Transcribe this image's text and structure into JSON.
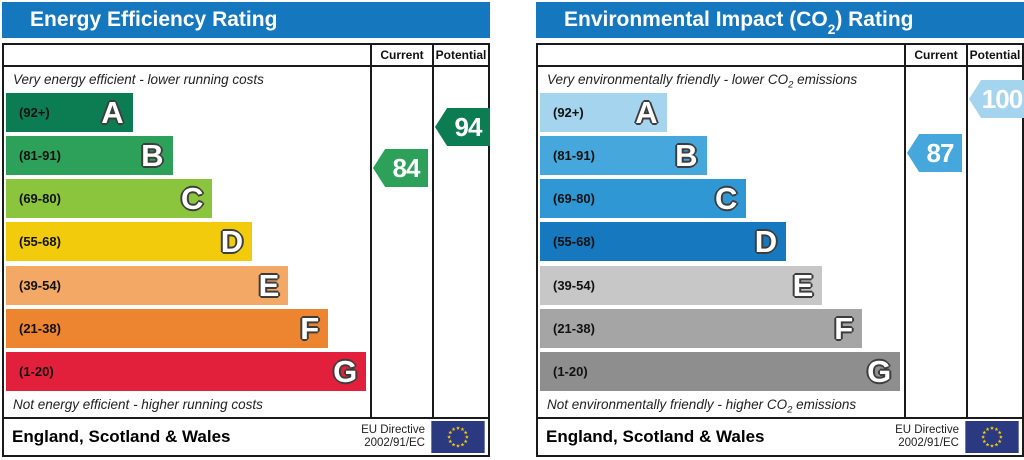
{
  "colors": {
    "header_blue": "#1577bd",
    "flag_bg": "#2b3a80",
    "flag_star": "#ffcc00"
  },
  "charts": [
    {
      "title_parts": {
        "pre": "Energy Efficiency Rating",
        "sub": "",
        "post": ""
      },
      "columns": {
        "current": "Current",
        "potential": "Potential"
      },
      "top_note_parts": {
        "pre": "Very energy efficient - lower running costs",
        "sub": "",
        "post": ""
      },
      "bottom_note_parts": {
        "pre": "Not energy efficient - higher running costs",
        "sub": "",
        "post": ""
      },
      "bands": [
        {
          "range": "(92+)",
          "letter": "A",
          "color": "#0c7c52",
          "width_pct": 35
        },
        {
          "range": "(81-91)",
          "letter": "B",
          "color": "#2da05a",
          "width_pct": 46
        },
        {
          "range": "(69-80)",
          "letter": "C",
          "color": "#8bc53e",
          "width_pct": 57
        },
        {
          "range": "(55-68)",
          "letter": "D",
          "color": "#f2cb0c",
          "width_pct": 68
        },
        {
          "range": "(39-54)",
          "letter": "E",
          "color": "#f3a865",
          "width_pct": 78
        },
        {
          "range": "(21-38)",
          "letter": "F",
          "color": "#ed8430",
          "width_pct": 89
        },
        {
          "range": "(1-20)",
          "letter": "G",
          "color": "#e3203c",
          "width_pct": 99.5
        }
      ],
      "current": {
        "value": "84",
        "color": "#2da05a"
      },
      "potential": {
        "value": "94",
        "color": "#0c7c52"
      },
      "footer": {
        "region": "England, Scotland & Wales",
        "directive_line1": "EU Directive",
        "directive_line2": "2002/91/EC"
      }
    },
    {
      "title_parts": {
        "pre": "Environmental Impact (CO",
        "sub": "2",
        "post": ") Rating"
      },
      "columns": {
        "current": "Current",
        "potential": "Potential"
      },
      "top_note_parts": {
        "pre": "Very environmentally friendly - lower CO",
        "sub": "2",
        "post": " emissions"
      },
      "bottom_note_parts": {
        "pre": "Not environmentally friendly - higher CO",
        "sub": "2",
        "post": " emissions"
      },
      "bands": [
        {
          "range": "(92+)",
          "letter": "A",
          "color": "#a5d5ee",
          "width_pct": 35
        },
        {
          "range": "(81-91)",
          "letter": "B",
          "color": "#46a7dc",
          "width_pct": 46
        },
        {
          "range": "(69-80)",
          "letter": "C",
          "color": "#2f97d4",
          "width_pct": 57
        },
        {
          "range": "(55-68)",
          "letter": "D",
          "color": "#1678be",
          "width_pct": 68
        },
        {
          "range": "(39-54)",
          "letter": "E",
          "color": "#c7c7c7",
          "width_pct": 78
        },
        {
          "range": "(21-38)",
          "letter": "F",
          "color": "#a5a5a5",
          "width_pct": 89
        },
        {
          "range": "(1-20)",
          "letter": "G",
          "color": "#8e8e8e",
          "width_pct": 99.5
        }
      ],
      "current": {
        "value": "87",
        "color": "#46a7dc"
      },
      "potential": {
        "value": "100",
        "color": "#a5d5ee"
      },
      "footer": {
        "region": "England, Scotland & Wales",
        "directive_line1": "EU Directive",
        "directive_line2": "2002/91/EC"
      }
    }
  ],
  "chart_data": [
    {
      "type": "bar",
      "title": "Energy Efficiency Rating",
      "subtitle_top": "Very energy efficient - lower running costs",
      "subtitle_bottom": "Not energy efficient - higher running costs",
      "categories": [
        "A (92+)",
        "B (81-91)",
        "C (69-80)",
        "D (55-68)",
        "E (39-54)",
        "F (21-38)",
        "G (1-20)"
      ],
      "band_bar_lengths_pct": [
        35,
        46,
        57,
        68,
        78,
        89,
        99.5
      ],
      "series": [
        {
          "name": "Current",
          "values": [
            84
          ],
          "band": "B"
        },
        {
          "name": "Potential",
          "values": [
            94
          ],
          "band": "A"
        }
      ],
      "scale_range": [
        1,
        100
      ],
      "legend_position": "top-right columns",
      "region": "England, Scotland & Wales",
      "directive": "EU Directive 2002/91/EC"
    },
    {
      "type": "bar",
      "title": "Environmental Impact (CO2) Rating",
      "subtitle_top": "Very environmentally friendly - lower CO2 emissions",
      "subtitle_bottom": "Not environmentally friendly - higher CO2 emissions",
      "categories": [
        "A (92+)",
        "B (81-91)",
        "C (69-80)",
        "D (55-68)",
        "E (39-54)",
        "F (21-38)",
        "G (1-20)"
      ],
      "band_bar_lengths_pct": [
        35,
        46,
        57,
        68,
        78,
        89,
        99.5
      ],
      "series": [
        {
          "name": "Current",
          "values": [
            87
          ],
          "band": "B"
        },
        {
          "name": "Potential",
          "values": [
            100
          ],
          "band": "A"
        }
      ],
      "scale_range": [
        1,
        100
      ],
      "legend_position": "top-right columns",
      "region": "England, Scotland & Wales",
      "directive": "EU Directive 2002/91/EC"
    }
  ]
}
